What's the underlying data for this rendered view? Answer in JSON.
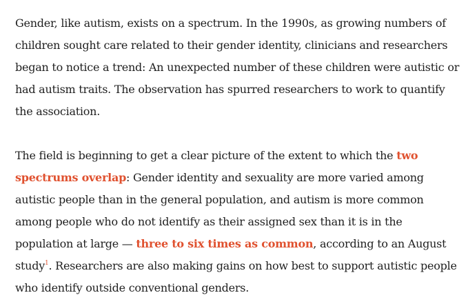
{
  "article": {
    "p1": "Gender, like autism, exists on a spectrum. In the 1990s, as growing numbers of children sought care related to their gender identity, clinicians and researchers began to notice a trend: An unexpected number of these children were autistic or had autism traits. The observation has spurred researchers to work to quantify the association.",
    "p2_before_link1": "The field is beginning to get a clear picture of the extent to which the ",
    "p2_link1": "two spectrums overlap",
    "p2_after_link1": ": Gender identity and sexuality are more varied among autistic people than in the general population, and autism is more common among people who do not identify as their assigned sex than it is in the population at large — ",
    "p2_link2": "three to six times as common",
    "p2_after_link2": ", according to an August study",
    "p2_footnote": "1",
    "p2_end": ". Researchers are also making gains on how best to support autistic people who identify outside conventional genders.",
    "colors": {
      "text": "#1f1f1f",
      "link": "#e0512f"
    }
  }
}
